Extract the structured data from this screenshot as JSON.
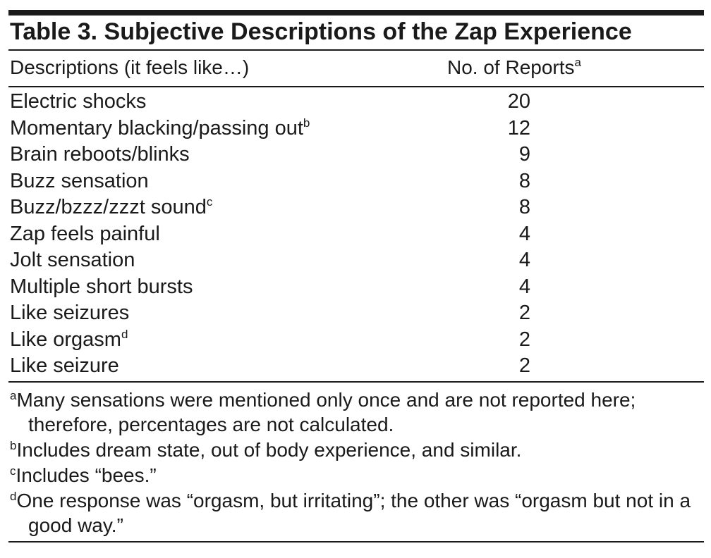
{
  "table": {
    "title": "Table 3. Subjective Descriptions of the Zap Experience",
    "columns": {
      "description": "Descriptions (it feels like…)",
      "reports": "No. of Reports",
      "reports_mark": "a"
    },
    "rows": [
      {
        "label": "Electric shocks",
        "mark": "",
        "value": "20"
      },
      {
        "label": "Momentary blacking/passing out",
        "mark": "b",
        "value": "12"
      },
      {
        "label": "Brain reboots/blinks",
        "mark": "",
        "value": "9"
      },
      {
        "label": "Buzz sensation",
        "mark": "",
        "value": "8"
      },
      {
        "label": "Buzz/bzzz/zzzt sound",
        "mark": "c",
        "value": "8"
      },
      {
        "label": "Zap feels painful",
        "mark": "",
        "value": "4"
      },
      {
        "label": "Jolt sensation",
        "mark": "",
        "value": "4"
      },
      {
        "label": "Multiple short bursts",
        "mark": "",
        "value": "4"
      },
      {
        "label": "Like seizures",
        "mark": "",
        "value": "2"
      },
      {
        "label": "Like orgasm",
        "mark": "d",
        "value": "2"
      },
      {
        "label": "Like seizure",
        "mark": "",
        "value": "2"
      }
    ],
    "footnotes": [
      {
        "mark": "a",
        "text": "Many sensations were mentioned only once and are not reported here; therefore, percentages are not calculated."
      },
      {
        "mark": "b",
        "text": "Includes dream state, out of body experience, and similar."
      },
      {
        "mark": "c",
        "text": "Includes “bees.”"
      },
      {
        "mark": "d",
        "text": "One response was “orgasm, but irritating”; the other was “orgasm but not in a good way.”"
      }
    ]
  }
}
